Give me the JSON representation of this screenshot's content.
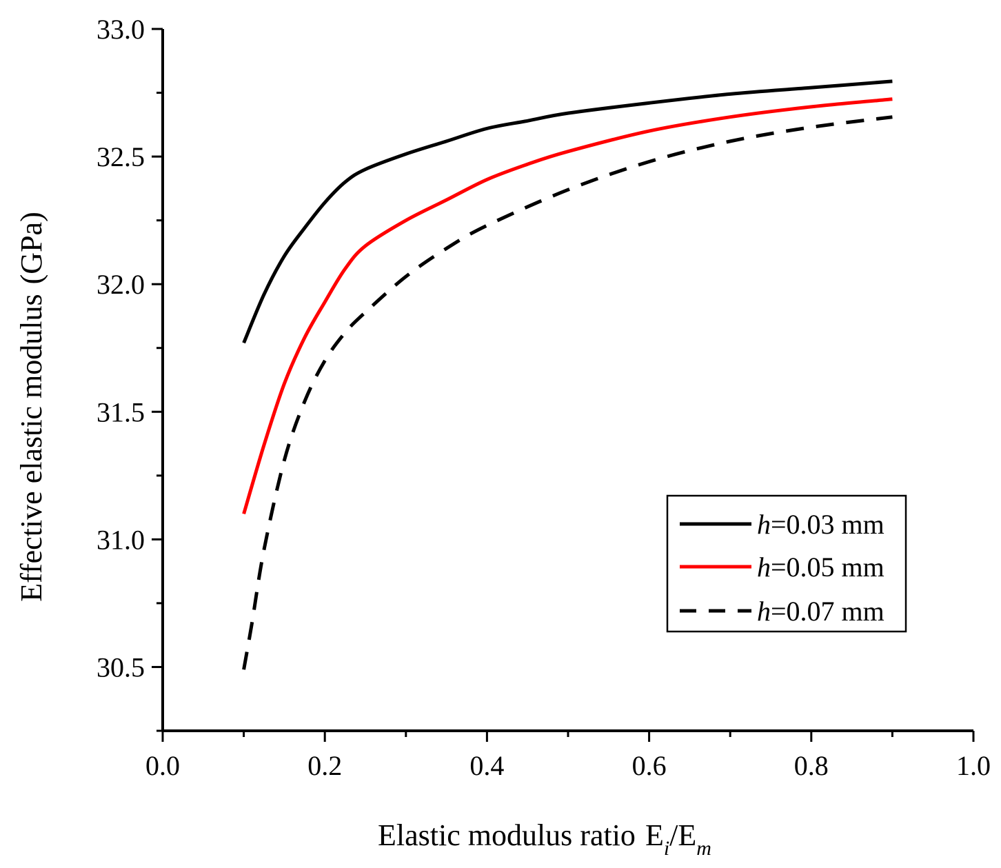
{
  "chart_data": {
    "type": "line",
    "title": "",
    "xlabel": "Elastic modulus ratio",
    "xlabel_math": {
      "base1": "E",
      "sub1": "i",
      "sep": "/",
      "base2": "E",
      "sub2": "m"
    },
    "ylabel": "Effective elastic modulus",
    "ylabel_unit": "(GPa)",
    "xlim": [
      0.0,
      1.0
    ],
    "ylim": [
      30.25,
      33.0
    ],
    "x_ticks": [
      "0.0",
      "0.2",
      "0.4",
      "0.6",
      "0.8",
      "1.0"
    ],
    "y_ticks": [
      "30.5",
      "31.0",
      "31.5",
      "32.0",
      "32.5",
      "33.0"
    ],
    "x_tick_values": [
      0.0,
      0.2,
      0.4,
      0.6,
      0.8,
      1.0
    ],
    "y_tick_values": [
      30.5,
      31.0,
      31.5,
      32.0,
      32.5,
      33.0
    ],
    "legend_position": "lower-right",
    "series": [
      {
        "name": "h=0.03 mm",
        "label_var": "h",
        "label_rest": "=0.03 mm",
        "color": "#000000",
        "dash": "solid",
        "x": [
          0.1,
          0.125,
          0.15,
          0.175,
          0.2,
          0.225,
          0.25,
          0.3,
          0.35,
          0.4,
          0.45,
          0.5,
          0.6,
          0.7,
          0.8,
          0.9
        ],
        "y": [
          31.77,
          31.96,
          32.11,
          32.22,
          32.32,
          32.4,
          32.45,
          32.51,
          32.56,
          32.61,
          32.64,
          32.67,
          32.71,
          32.745,
          32.77,
          32.795
        ]
      },
      {
        "name": "h=0.05 mm",
        "label_var": "h",
        "label_rest": "=0.05 mm",
        "color": "#ff0000",
        "dash": "solid",
        "x": [
          0.1,
          0.125,
          0.15,
          0.175,
          0.2,
          0.225,
          0.25,
          0.3,
          0.35,
          0.4,
          0.45,
          0.5,
          0.6,
          0.7,
          0.8,
          0.9
        ],
        "y": [
          31.1,
          31.37,
          31.61,
          31.79,
          31.93,
          32.06,
          32.15,
          32.25,
          32.33,
          32.41,
          32.47,
          32.52,
          32.6,
          32.655,
          32.695,
          32.725
        ]
      },
      {
        "name": "h=0.07 mm",
        "label_var": "h",
        "label_rest": "=0.07 mm",
        "color": "#000000",
        "dash": "dashed",
        "x": [
          0.1,
          0.11,
          0.125,
          0.15,
          0.175,
          0.2,
          0.225,
          0.25,
          0.3,
          0.35,
          0.4,
          0.5,
          0.6,
          0.7,
          0.8,
          0.9
        ],
        "y": [
          30.49,
          30.67,
          30.96,
          31.31,
          31.54,
          31.7,
          31.81,
          31.89,
          32.03,
          32.14,
          32.23,
          32.37,
          32.48,
          32.56,
          32.615,
          32.655
        ]
      }
    ]
  }
}
